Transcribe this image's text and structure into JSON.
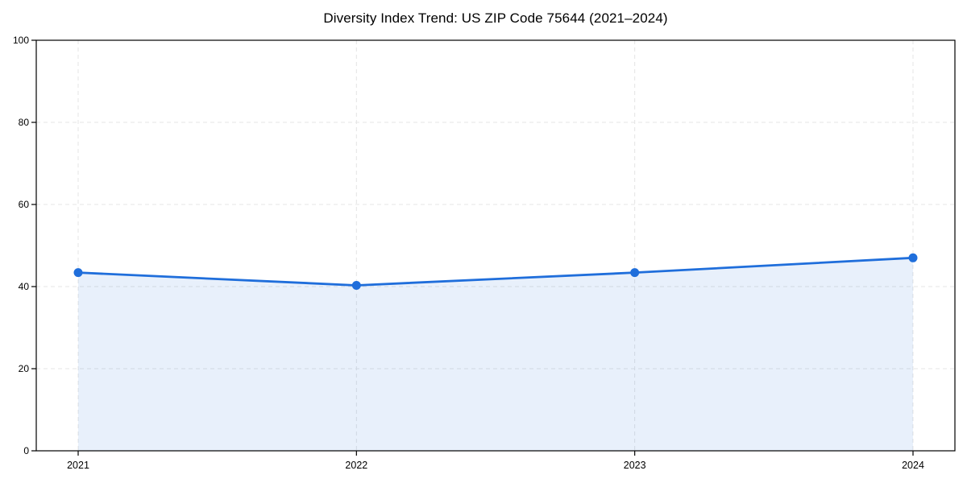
{
  "chart_data": {
    "type": "line",
    "title": "Diversity Index Trend: US ZIP Code 75644 (2021–2024)",
    "x_categories": [
      "2021",
      "2022",
      "2023",
      "2024"
    ],
    "series": [
      {
        "name": "Diversity Index",
        "values": [
          43.4,
          40.3,
          43.4,
          47.0
        ]
      }
    ],
    "ylim": [
      0,
      100
    ],
    "yticks": [
      0,
      20,
      40,
      60,
      80,
      100
    ],
    "xlabel": "",
    "ylabel": "",
    "grid": "dashed-both-axes",
    "legend": "none",
    "area_fill": true,
    "markers": "circle",
    "style": {
      "line_color": "#1f6edb",
      "marker_color": "#1f6edb",
      "fill_color": "rgba(31, 110, 219, 0.10)",
      "grid_color": "#e4e4e4",
      "axis_color": "#000000",
      "text_color": "#000000",
      "background": "#ffffff"
    }
  }
}
